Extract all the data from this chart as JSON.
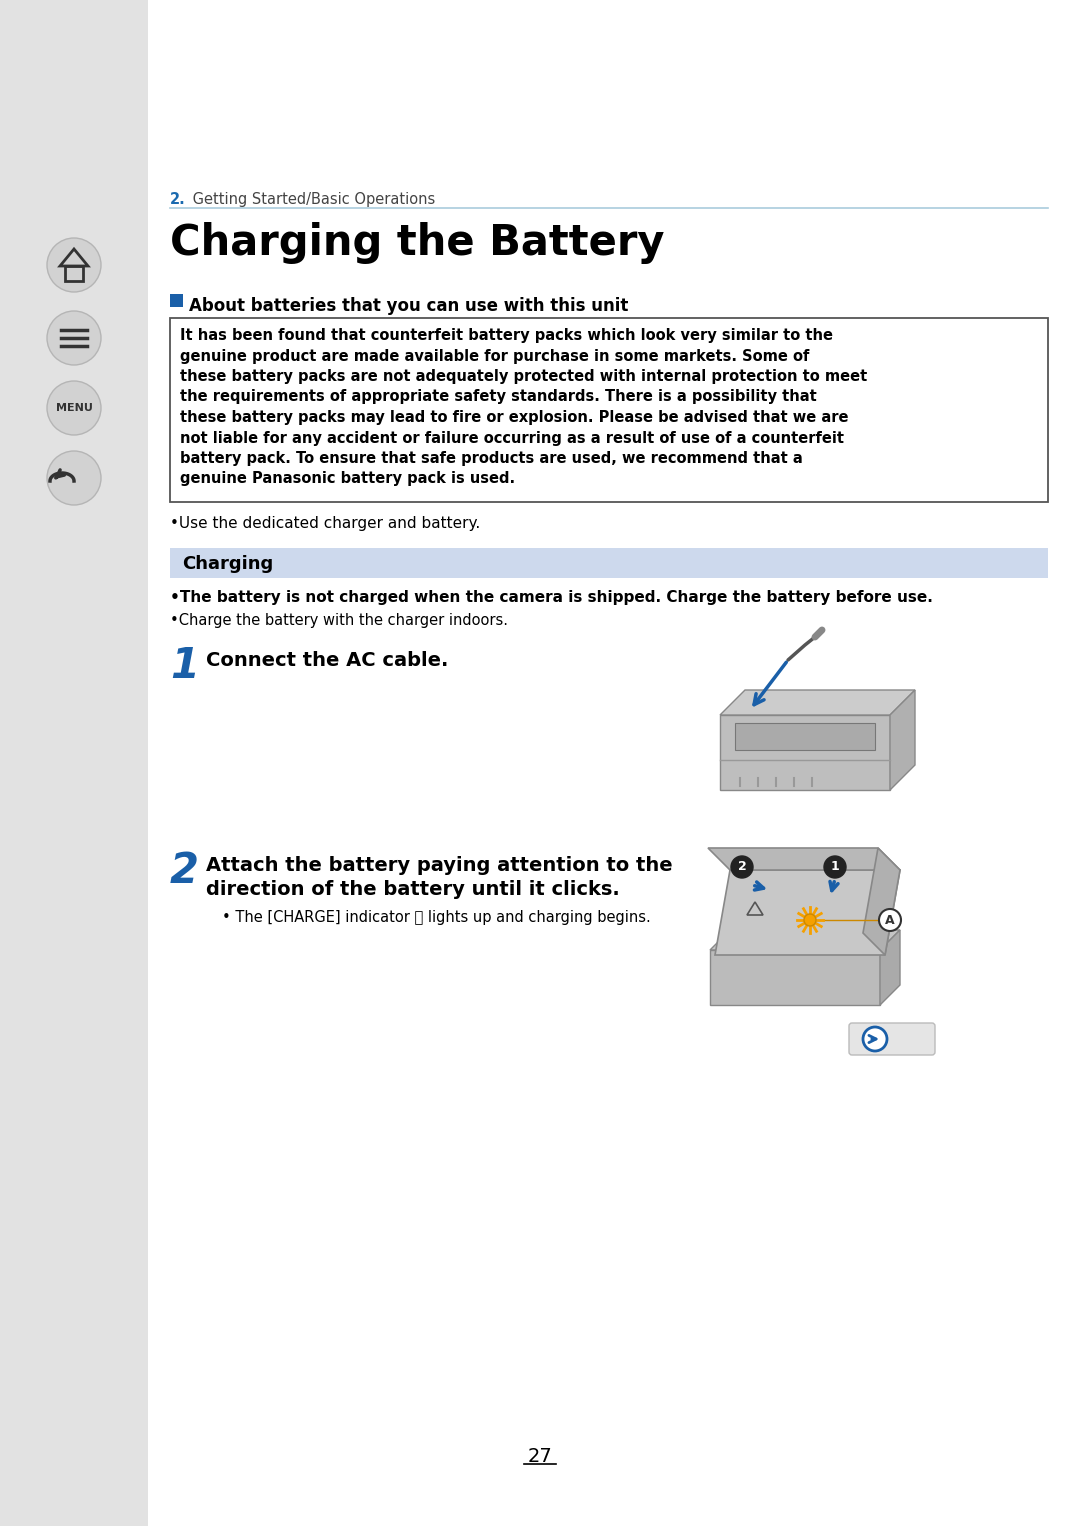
{
  "bg_color": "#ffffff",
  "sidebar_color": "#e2e2e2",
  "section_num": "2.",
  "section_num_color": "#1a6aaf",
  "section_text": " Getting Started/Basic Operations",
  "title": "Charging the Battery",
  "about_sq_color": "#1a5fa8",
  "about_header": "About batteries that you can use with this unit",
  "warning_lines": [
    "It has been found that counterfeit battery packs which look very similar to the",
    "genuine product are made available for purchase in some markets. Some of",
    "these battery packs are not adequately protected with internal protection to meet",
    "the requirements of appropriate safety standards. There is a possibility that",
    "these battery packs may lead to fire or explosion. Please be advised that we are",
    "not liable for any accident or failure occurring as a result of use of a counterfeit",
    "battery pack. To ensure that safe products are used, we recommend that a",
    "genuine Panasonic battery pack is used."
  ],
  "bullet_dedicated": "•Use the dedicated charger and battery.",
  "charging_header": "Charging",
  "charging_bg": "#cdd9ed",
  "bullet1": "•The battery is not charged when the camera is shipped. Charge the battery before use.",
  "bullet2": "•Charge the battery with the charger indoors.",
  "step1_num": "1",
  "step1_text": "Connect the AC cable.",
  "step2_num": "2",
  "step2_line1": "Attach the battery paying attention to the",
  "step2_line2": "direction of the battery until it clicks.",
  "step2_bullet": "• The [CHARGE] indicator Ⓐ lights up and charging begins.",
  "page_number": "27",
  "step_num_color": "#1a5fa8",
  "line_color": "#aaccdd",
  "text_color": "#000000",
  "icon_bg": "#d5d5d5"
}
